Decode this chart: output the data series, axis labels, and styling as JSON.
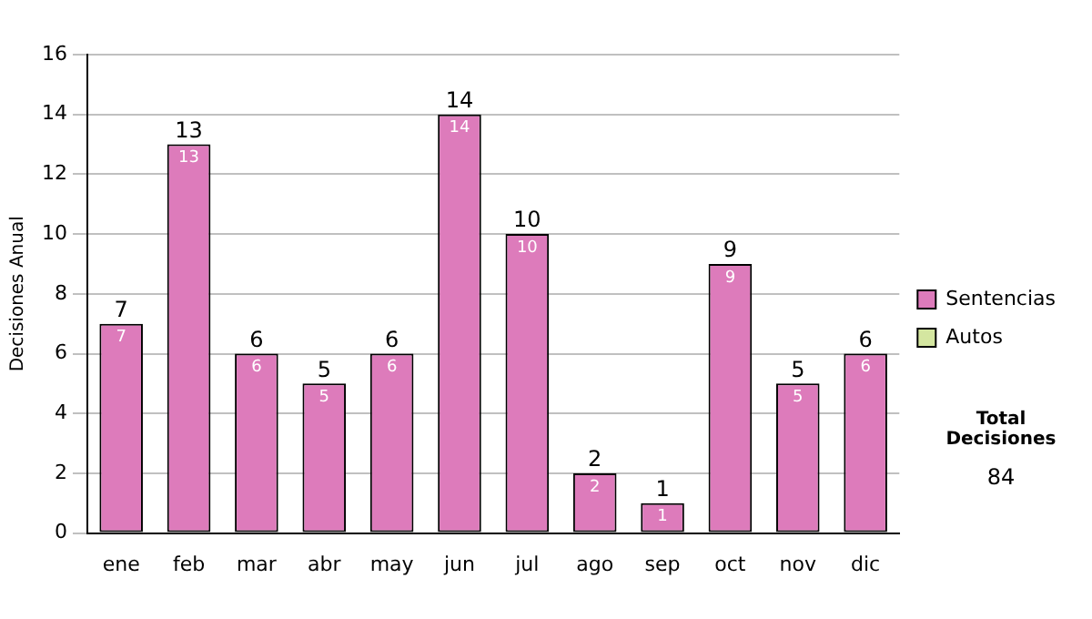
{
  "chart_data": {
    "type": "bar",
    "stacked": true,
    "ylabel": "Decisiones Anual",
    "categories": [
      "ene",
      "feb",
      "mar",
      "abr",
      "may",
      "jun",
      "jul",
      "ago",
      "sep",
      "oct",
      "nov",
      "dic"
    ],
    "series": [
      {
        "name": "Sentencias",
        "color": "#dd7bbb",
        "values": [
          7,
          13,
          6,
          5,
          6,
          14,
          10,
          2,
          1,
          9,
          5,
          6
        ],
        "value_labels": [
          "7",
          "13",
          "6",
          "5",
          "6",
          "14",
          "10",
          "2",
          "1",
          "9",
          "5",
          "6"
        ]
      },
      {
        "name": "Autos",
        "color": "#d4e6a0",
        "values": [
          0,
          0,
          0,
          0,
          0,
          0,
          0,
          0,
          0,
          0,
          0,
          0
        ]
      }
    ],
    "ylim": [
      0,
      16
    ],
    "yticks": [
      0,
      2,
      4,
      6,
      8,
      10,
      12,
      14,
      16
    ],
    "grid": "y",
    "legend": "right",
    "totals": [
      "7",
      "13",
      "6",
      "5",
      "6",
      "14",
      "10",
      "2",
      "1",
      "9",
      "5",
      "6"
    ],
    "annotations": [
      "Total Decisiones",
      "84"
    ]
  }
}
